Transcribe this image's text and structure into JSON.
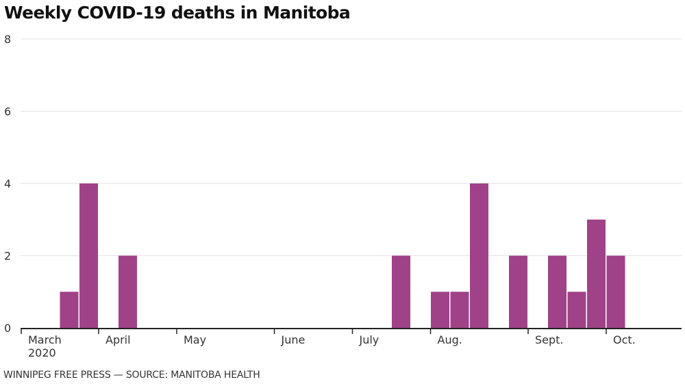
{
  "chart_data": {
    "type": "bar",
    "title": "Weekly COVID-19 deaths in Manitoba",
    "xlabel": "",
    "ylabel": "",
    "ylim": [
      0,
      8
    ],
    "yticks": [
      "0",
      "2",
      "4",
      "6",
      "8"
    ],
    "grid": true,
    "bar_color": "#A04288",
    "week_count": 34,
    "month_labels": [
      {
        "label": "March",
        "sublabel": "2020",
        "week": 0
      },
      {
        "label": "April",
        "sublabel": "",
        "week": 4
      },
      {
        "label": "May",
        "sublabel": "",
        "week": 8
      },
      {
        "label": "June",
        "sublabel": "",
        "week": 13
      },
      {
        "label": "July",
        "sublabel": "",
        "week": 17
      },
      {
        "label": "Aug.",
        "sublabel": "",
        "week": 21
      },
      {
        "label": "Sept.",
        "sublabel": "",
        "week": 26
      },
      {
        "label": "Oct.",
        "sublabel": "",
        "week": 30
      }
    ],
    "series": [
      {
        "name": "Weekly deaths",
        "points": [
          {
            "week": 2,
            "value": 1
          },
          {
            "week": 3,
            "value": 4
          },
          {
            "week": 5,
            "value": 2
          },
          {
            "week": 19,
            "value": 2
          },
          {
            "week": 21,
            "value": 1
          },
          {
            "week": 22,
            "value": 1
          },
          {
            "week": 23,
            "value": 4
          },
          {
            "week": 25,
            "value": 2
          },
          {
            "week": 27,
            "value": 2
          },
          {
            "week": 28,
            "value": 1
          },
          {
            "week": 29,
            "value": 3
          },
          {
            "week": 30,
            "value": 2
          }
        ]
      }
    ]
  },
  "footer": "WINNIPEG FREE PRESS — SOURCE: MANITOBA HEALTH"
}
